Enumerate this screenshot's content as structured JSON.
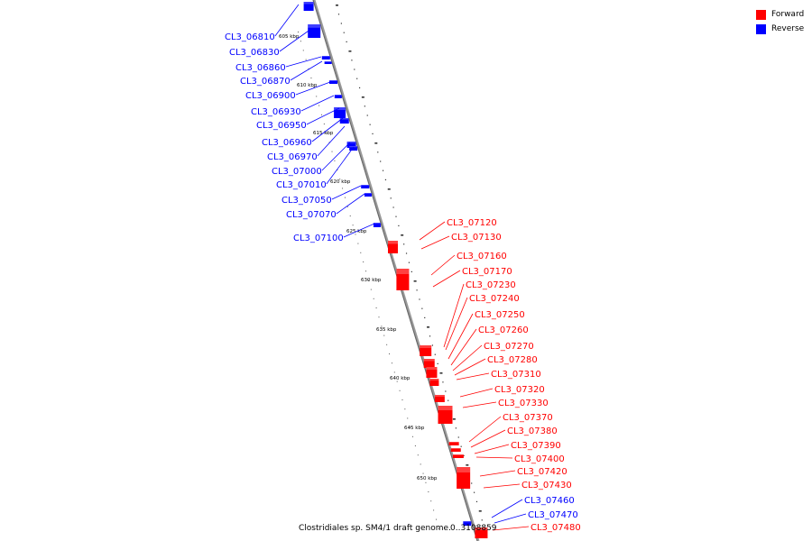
{
  "legend": {
    "forward_label": "Forward",
    "reverse_label": "Reverse"
  },
  "colors": {
    "forward": "#ff0000",
    "reverse": "#0000ff",
    "axis": "#888888",
    "text": "#000000"
  },
  "caption": "Clostridiales sp. SM4/1 draft genome.",
  "coord_label": "0..3108859",
  "scale_labels": [
    "605 kbp",
    "610 kbp",
    "615 kbp",
    "620 kbp",
    "625 kbp",
    "630 kbp",
    "635 kbp",
    "640 kbp",
    "645 kbp",
    "650 kbp"
  ],
  "genes_reverse": [
    "CL3_06810",
    "CL3_06830",
    "CL3_06860",
    "CL3_06870",
    "CL3_06900",
    "CL3_06930",
    "CL3_06950",
    "CL3_06960",
    "CL3_06970",
    "CL3_07000",
    "CL3_07010",
    "CL3_07050",
    "CL3_07070",
    "CL3_07100",
    "CL3_07460",
    "CL3_07470"
  ],
  "genes_forward": [
    "CL3_07120",
    "CL3_07130",
    "CL3_07160",
    "CL3_07170",
    "CL3_07230",
    "CL3_07240",
    "CL3_07250",
    "CL3_07260",
    "CL3_07270",
    "CL3_07280",
    "CL3_07310",
    "CL3_07320",
    "CL3_07330",
    "CL3_07370",
    "CL3_07380",
    "CL3_07390",
    "CL3_07400",
    "CL3_07420",
    "CL3_07430",
    "CL3_07480"
  ]
}
